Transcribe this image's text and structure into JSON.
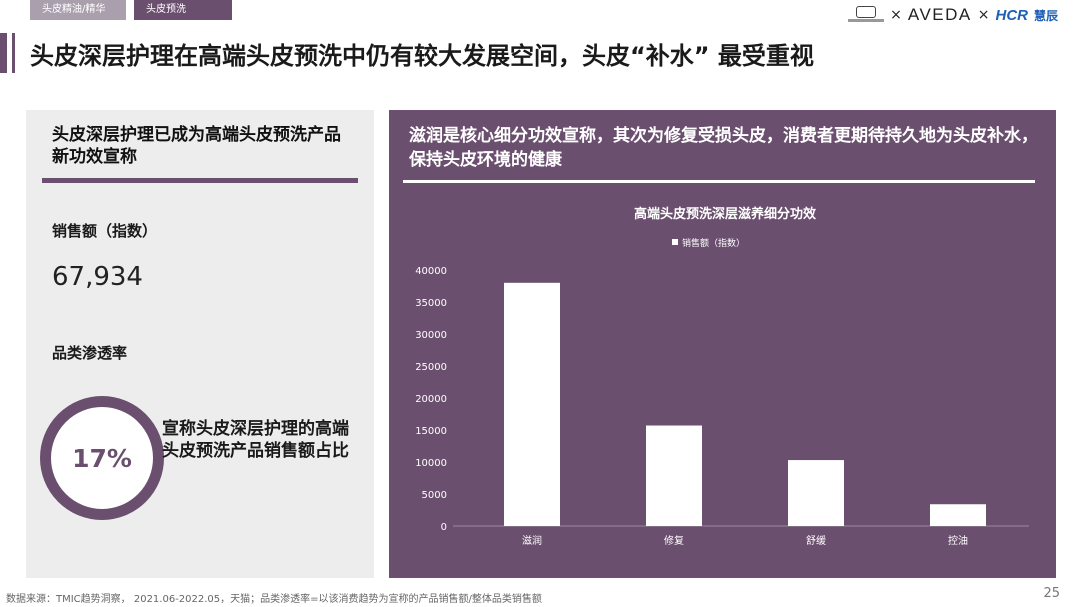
{
  "tabs": [
    {
      "label": "头皮精油/精华",
      "active": false
    },
    {
      "label": "头皮预洗",
      "active": true
    }
  ],
  "logos": {
    "times": "×",
    "aveda": "AVEDA",
    "times2": "×",
    "hcr": "HCR",
    "hcr_cn": "慧辰"
  },
  "title": "头皮深层护理在高端头皮预洗中仍有较大发展空间，头皮“补水” 最受重视",
  "left": {
    "heading": "头皮深层护理已成为高端头皮预洗产品新功效宣称",
    "sales_label": "销售额（指数）",
    "sales_value": "67,934",
    "penetration_label": "品类渗透率",
    "penetration_value": "17%",
    "penetration_fraction": 0.17,
    "penetration_desc": "宣称头皮深层护理的高端头皮预洗产品销售额占比"
  },
  "right": {
    "heading": "滋润是核心细分功效宣称，其次为修复受损头皮，消费者更期待持久地为头皮补水，保持头皮环境的健康"
  },
  "chart_data": {
    "type": "bar",
    "title": "高端头皮预洗深层滋养细分功效",
    "categories": [
      "滋润",
      "修复",
      "舒缓",
      "控油"
    ],
    "series": [
      {
        "name": "销售额（指数）",
        "values": [
          38000,
          15700,
          10300,
          3400
        ]
      }
    ],
    "ylim": [
      0,
      40000
    ],
    "yticks": [
      0,
      5000,
      10000,
      15000,
      20000,
      25000,
      30000,
      35000,
      40000
    ],
    "legend": "top-center",
    "grid": false,
    "bar_color": "#ffffff"
  },
  "footer": "数据来源：TMIC趋势洞察， 2021.06-2022.05，天猫；品类渗透率=以该消费趋势为宣称的产品销售额/整体品类销售额",
  "page_number": "25"
}
